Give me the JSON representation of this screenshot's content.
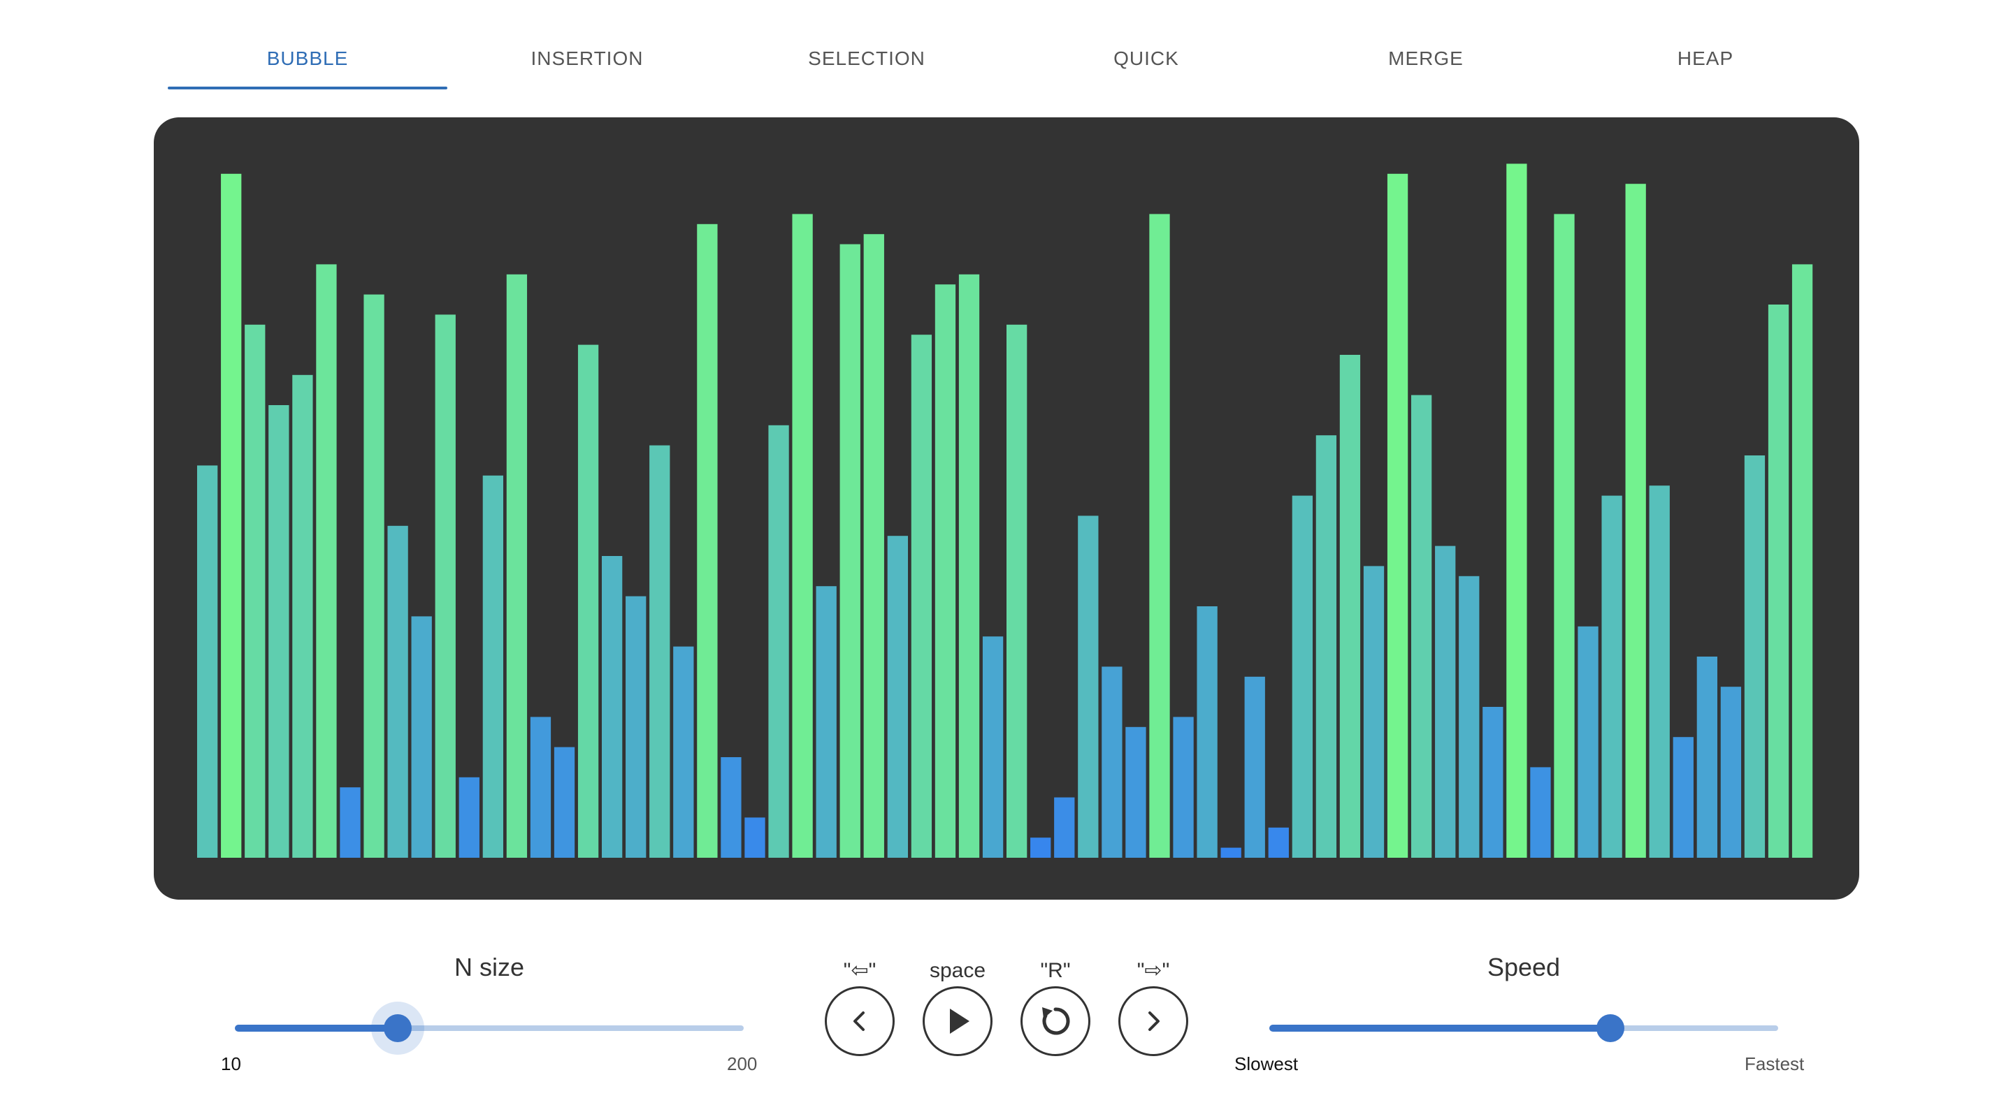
{
  "tabs": [
    {
      "label": "BUBBLE",
      "active": true
    },
    {
      "label": "INSERTION",
      "active": false
    },
    {
      "label": "SELECTION",
      "active": false
    },
    {
      "label": "QUICK",
      "active": false
    },
    {
      "label": "MERGE",
      "active": false
    },
    {
      "label": "HEAP",
      "active": false
    }
  ],
  "controls": {
    "n_size": {
      "title": "N size",
      "min_label": "10",
      "max_label": "200",
      "value_fraction": 0.32
    },
    "speed": {
      "title": "Speed",
      "min_label": "Slowest",
      "max_label": "Fastest",
      "value_fraction": 0.67
    },
    "buttons": {
      "prev_hint": "\"⇦\"",
      "play_hint": "space",
      "reset_hint": "\"R\"",
      "next_hint": "\"⇨\""
    }
  },
  "colors": {
    "accent": "#3a74c8",
    "tab_active": "#2f6db5",
    "panel_bg": "#333333",
    "bar_low": "#3583f0",
    "bar_high": "#76f78b"
  },
  "chart_data": {
    "type": "bar",
    "values": [
      39,
      68,
      53,
      45,
      48,
      59,
      7,
      56,
      33,
      24,
      54,
      8,
      38,
      58,
      14,
      11,
      51,
      30,
      26,
      41,
      21,
      63,
      10,
      4,
      43,
      64,
      27,
      61,
      62,
      32,
      52,
      57,
      58,
      22,
      53,
      2,
      6,
      34,
      19,
      13,
      64,
      14,
      25,
      1,
      18,
      3,
      36,
      42,
      50,
      29,
      68,
      46,
      31,
      28,
      15,
      69,
      9,
      64,
      23,
      36,
      67,
      37,
      12,
      20,
      17,
      40,
      55,
      59
    ],
    "ylim": [
      0,
      70
    ]
  }
}
